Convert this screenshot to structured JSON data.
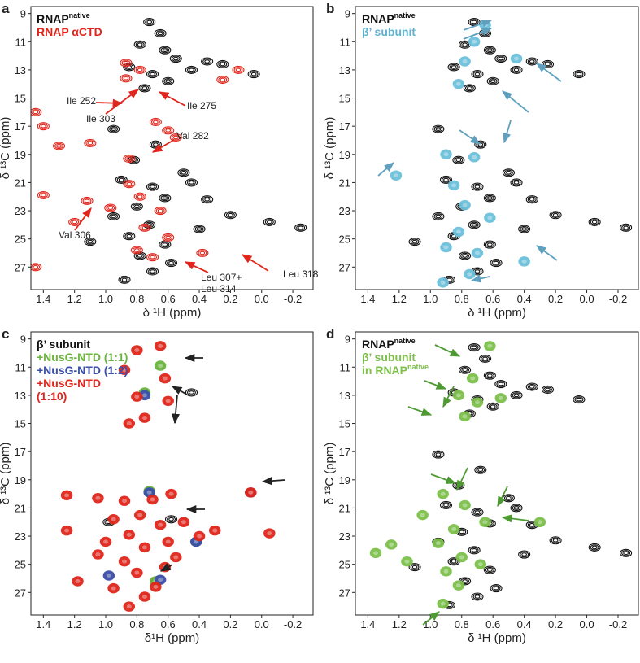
{
  "chart_data": [
    {
      "type": "scatter",
      "label": "a",
      "x_label": "δ ¹H (ppm)",
      "y_label": "δ ¹³C (ppm)",
      "xlim": [
        1.48,
        -0.33
      ],
      "ylim": [
        8.5,
        28.6
      ],
      "xticks": [
        1.4,
        1.2,
        {
          "value": 1,
          "label": "1.0"
        },
        0.8,
        0.6,
        0.4,
        0.2,
        {
          "value": 0,
          "label": "0.0"
        },
        -0.2
      ],
      "yticks": [
        9,
        11,
        13,
        15,
        17,
        19,
        21,
        23,
        25,
        27
      ],
      "annotations": [
        "Ile 252",
        "Ile 303",
        "Ile 275",
        "Val 282",
        "Val 306",
        "Leu 307+",
        "Leu 314",
        "Leu 318"
      ],
      "series": [
        {
          "name": "RNAP",
          "superscript": "native",
          "color": "#111111",
          "style": "contour",
          "x": [
            0.72,
            0.65,
            0.78,
            0.62,
            0.55,
            0.85,
            0.7,
            0.6,
            0.75,
            0.45,
            0.35,
            0.25,
            0.05,
            0.95,
            0.68,
            0.82,
            0.9,
            0.7,
            0.62,
            0.8,
            0.95,
            0.72,
            0.85,
            0.62,
            0.78,
            0.7,
            0.45,
            0.35,
            0.2,
            -0.05,
            -0.25,
            1.1,
            0.5,
            0.58,
            0.88,
            0.4
          ],
          "values": [
            9.6,
            10.4,
            11.2,
            11.6,
            12.2,
            12.8,
            13.3,
            13.8,
            14.3,
            13.0,
            12.4,
            12.6,
            13.3,
            17.2,
            18.3,
            19.4,
            20.8,
            21.3,
            22.1,
            22.7,
            23.4,
            24.0,
            24.8,
            25.4,
            26.2,
            27.3,
            21.0,
            22.2,
            23.3,
            23.8,
            24.2,
            25.2,
            20.3,
            26.7,
            27.9,
            24.3
          ]
        },
        {
          "name": "RNAP αCTD",
          "color": "#e0261c",
          "style": "contour",
          "x": [
            0.87,
            0.78,
            0.87,
            1.45,
            1.4,
            1.3,
            1.1,
            0.68,
            0.6,
            0.55,
            1.4,
            1.12,
            0.97,
            0.78,
            0.85,
            0.65,
            1.2,
            0.75,
            0.6,
            0.8,
            0.7,
            0.38,
            0.85,
            0.25,
            1.45,
            0.15
          ],
          "values": [
            13.6,
            13.0,
            12.5,
            16.0,
            17.0,
            18.4,
            18.2,
            16.7,
            17.3,
            17.8,
            21.9,
            22.3,
            22.8,
            22.0,
            21.1,
            23.0,
            23.8,
            24.2,
            24.9,
            25.8,
            26.3,
            26.0,
            19.3,
            13.7,
            27.0,
            13.0
          ]
        }
      ]
    },
    {
      "type": "scatter",
      "label": "b",
      "x_label": "δ ¹H (ppm)",
      "y_label": "δ ¹³C (ppm)",
      "xlim": [
        1.48,
        -0.33
      ],
      "ylim": [
        8.5,
        28.6
      ],
      "xticks": [
        1.4,
        1.2,
        {
          "value": 1,
          "label": "1.0"
        },
        0.8,
        0.6,
        0.4,
        0.2,
        {
          "value": 0,
          "label": "0.0"
        },
        -0.2
      ],
      "yticks": [
        9,
        11,
        13,
        15,
        17,
        19,
        21,
        23,
        25,
        27
      ],
      "series": [
        {
          "name": "RNAP",
          "superscript": "native",
          "color": "#111111",
          "style": "contour",
          "x": [
            0.72,
            0.65,
            0.78,
            0.62,
            0.55,
            0.85,
            0.7,
            0.6,
            0.75,
            0.45,
            0.35,
            0.25,
            0.05,
            0.95,
            0.68,
            0.82,
            0.9,
            0.7,
            0.62,
            0.8,
            0.95,
            0.72,
            0.85,
            0.62,
            0.78,
            0.7,
            0.45,
            0.35,
            0.2,
            -0.05,
            -0.25,
            1.1,
            0.5,
            0.58,
            0.88,
            0.4
          ],
          "values": [
            9.6,
            10.4,
            11.2,
            11.6,
            12.2,
            12.8,
            13.3,
            13.8,
            14.3,
            13.0,
            12.4,
            12.6,
            13.3,
            17.2,
            18.3,
            19.4,
            20.8,
            21.3,
            22.1,
            22.7,
            23.4,
            24.0,
            24.8,
            25.4,
            26.2,
            27.3,
            21.0,
            22.2,
            23.3,
            23.8,
            24.2,
            25.2,
            20.3,
            26.7,
            27.9,
            24.3
          ]
        },
        {
          "name": "β’ subunit",
          "color": "#6cc0dc",
          "style": "filled",
          "x": [
            0.65,
            0.72,
            0.78,
            0.45,
            0.82,
            0.9,
            0.72,
            1.22,
            0.85,
            0.78,
            0.82,
            0.62,
            0.9,
            0.7,
            0.4,
            0.92,
            0.75
          ],
          "values": [
            9.8,
            11.0,
            12.4,
            12.2,
            14.0,
            19.0,
            19.2,
            20.5,
            21.2,
            22.6,
            24.5,
            23.5,
            25.6,
            26.0,
            26.6,
            28.1,
            27.5
          ]
        }
      ]
    },
    {
      "type": "scatter",
      "label": "c",
      "x_label": "δ¹H (ppm)",
      "y_label": "δ ¹³C (ppm)",
      "xlim": [
        1.48,
        -0.33
      ],
      "ylim": [
        8.5,
        28.6
      ],
      "xticks": [
        1.4,
        1.2,
        {
          "value": 1,
          "label": "1.0"
        },
        0.8,
        0.6,
        0.4,
        0.2,
        {
          "value": 0,
          "label": "0.0"
        },
        -0.2
      ],
      "yticks": [
        9,
        11,
        13,
        15,
        17,
        19,
        21,
        23,
        25,
        27
      ],
      "series": [
        {
          "name": "β’ subunit",
          "color": "#111111",
          "style": "contour",
          "x": [
            0.45,
            0.58,
            0.67,
            0.98
          ],
          "values": [
            12.8,
            21.8,
            26.2,
            22.0
          ]
        },
        {
          "name": "+NusG-NTD (1:1)",
          "color": "#6ab43e",
          "style": "filled",
          "x": [
            0.65,
            0.75,
            0.72,
            0.42,
            0.68
          ],
          "values": [
            10.9,
            12.8,
            19.8,
            23.4,
            26.2
          ]
        },
        {
          "name": "+NusG-NTD (1:2)",
          "color": "#3a4fa8",
          "style": "filled",
          "x": [
            0.75,
            0.72,
            0.07,
            0.42,
            0.65,
            0.98
          ],
          "values": [
            13.0,
            19.9,
            19.9,
            23.4,
            26.1,
            25.8
          ]
        },
        {
          "name": "+NusG-NTD\n(1:10)",
          "color": "#e0261c",
          "style": "filled",
          "x": [
            0.8,
            0.65,
            0.88,
            0.62,
            0.8,
            0.6,
            0.75,
            0.85,
            1.25,
            1.05,
            0.88,
            0.7,
            0.58,
            0.95,
            0.78,
            0.65,
            0.85,
            0.6,
            0.75,
            1.05,
            0.88,
            0.62,
            0.8,
            1.18,
            0.95,
            0.75,
            0.85,
            0.55,
            0.4,
            0.3,
            0.07,
            -0.05,
            1.25,
            1.0,
            0.68,
            0.5
          ],
          "values": [
            9.8,
            9.5,
            11.2,
            11.8,
            13.1,
            13.4,
            14.6,
            15.0,
            20.1,
            20.3,
            20.5,
            20.4,
            20.0,
            21.8,
            21.5,
            22.2,
            22.9,
            23.4,
            23.8,
            24.3,
            24.8,
            25.2,
            25.6,
            26.2,
            26.7,
            27.3,
            28.0,
            24.5,
            23.0,
            22.6,
            19.9,
            22.8,
            22.6,
            23.4,
            26.6,
            22.0
          ]
        }
      ]
    },
    {
      "type": "scatter",
      "label": "d",
      "x_label": "δ ¹H (ppm)",
      "y_label": "δ ¹³C (ppm)",
      "xlim": [
        1.48,
        -0.33
      ],
      "ylim": [
        8.5,
        28.6
      ],
      "xticks": [
        1.4,
        1.2,
        {
          "value": 1,
          "label": "1.0"
        },
        0.8,
        0.6,
        0.4,
        0.2,
        {
          "value": 0,
          "label": "0.0"
        },
        -0.2
      ],
      "yticks": [
        9,
        11,
        13,
        15,
        17,
        19,
        21,
        23,
        25,
        27
      ],
      "series": [
        {
          "name": "RNAP",
          "superscript": "native",
          "color": "#111111",
          "style": "contour",
          "x": [
            0.72,
            0.65,
            0.78,
            0.62,
            0.55,
            0.85,
            0.7,
            0.6,
            0.75,
            0.45,
            0.35,
            0.25,
            0.05,
            0.95,
            0.68,
            0.82,
            0.9,
            0.7,
            0.62,
            0.8,
            0.95,
            0.72,
            0.85,
            0.62,
            0.78,
            0.7,
            0.45,
            0.35,
            0.2,
            -0.05,
            -0.25,
            1.1,
            0.5,
            0.58,
            0.88,
            0.4
          ],
          "values": [
            9.6,
            10.4,
            11.2,
            11.6,
            12.2,
            12.8,
            13.3,
            13.8,
            14.3,
            13.0,
            12.4,
            12.6,
            13.3,
            17.2,
            18.3,
            19.4,
            20.8,
            21.3,
            22.1,
            22.7,
            23.4,
            24.0,
            24.8,
            25.4,
            26.2,
            27.3,
            21.0,
            22.2,
            23.3,
            23.8,
            24.2,
            25.2,
            20.3,
            26.7,
            27.9,
            24.3
          ]
        },
        {
          "name": "β’ subunit\nin RNAP",
          "superscript": "native",
          "color": "#7cc04a",
          "style": "filled",
          "x": [
            0.62,
            0.73,
            0.82,
            0.7,
            0.78,
            0.55,
            0.92,
            0.78,
            1.05,
            0.85,
            0.65,
            0.95,
            0.8,
            0.9,
            0.68,
            1.15,
            0.3,
            0.82,
            0.92,
            1.25,
            1.35
          ],
          "values": [
            9.5,
            11.8,
            13.0,
            13.5,
            14.5,
            13.2,
            20.0,
            20.8,
            21.5,
            22.5,
            22.0,
            23.5,
            24.5,
            25.5,
            25.0,
            24.8,
            22.0,
            26.5,
            27.8,
            23.6,
            24.2
          ]
        }
      ]
    }
  ]
}
